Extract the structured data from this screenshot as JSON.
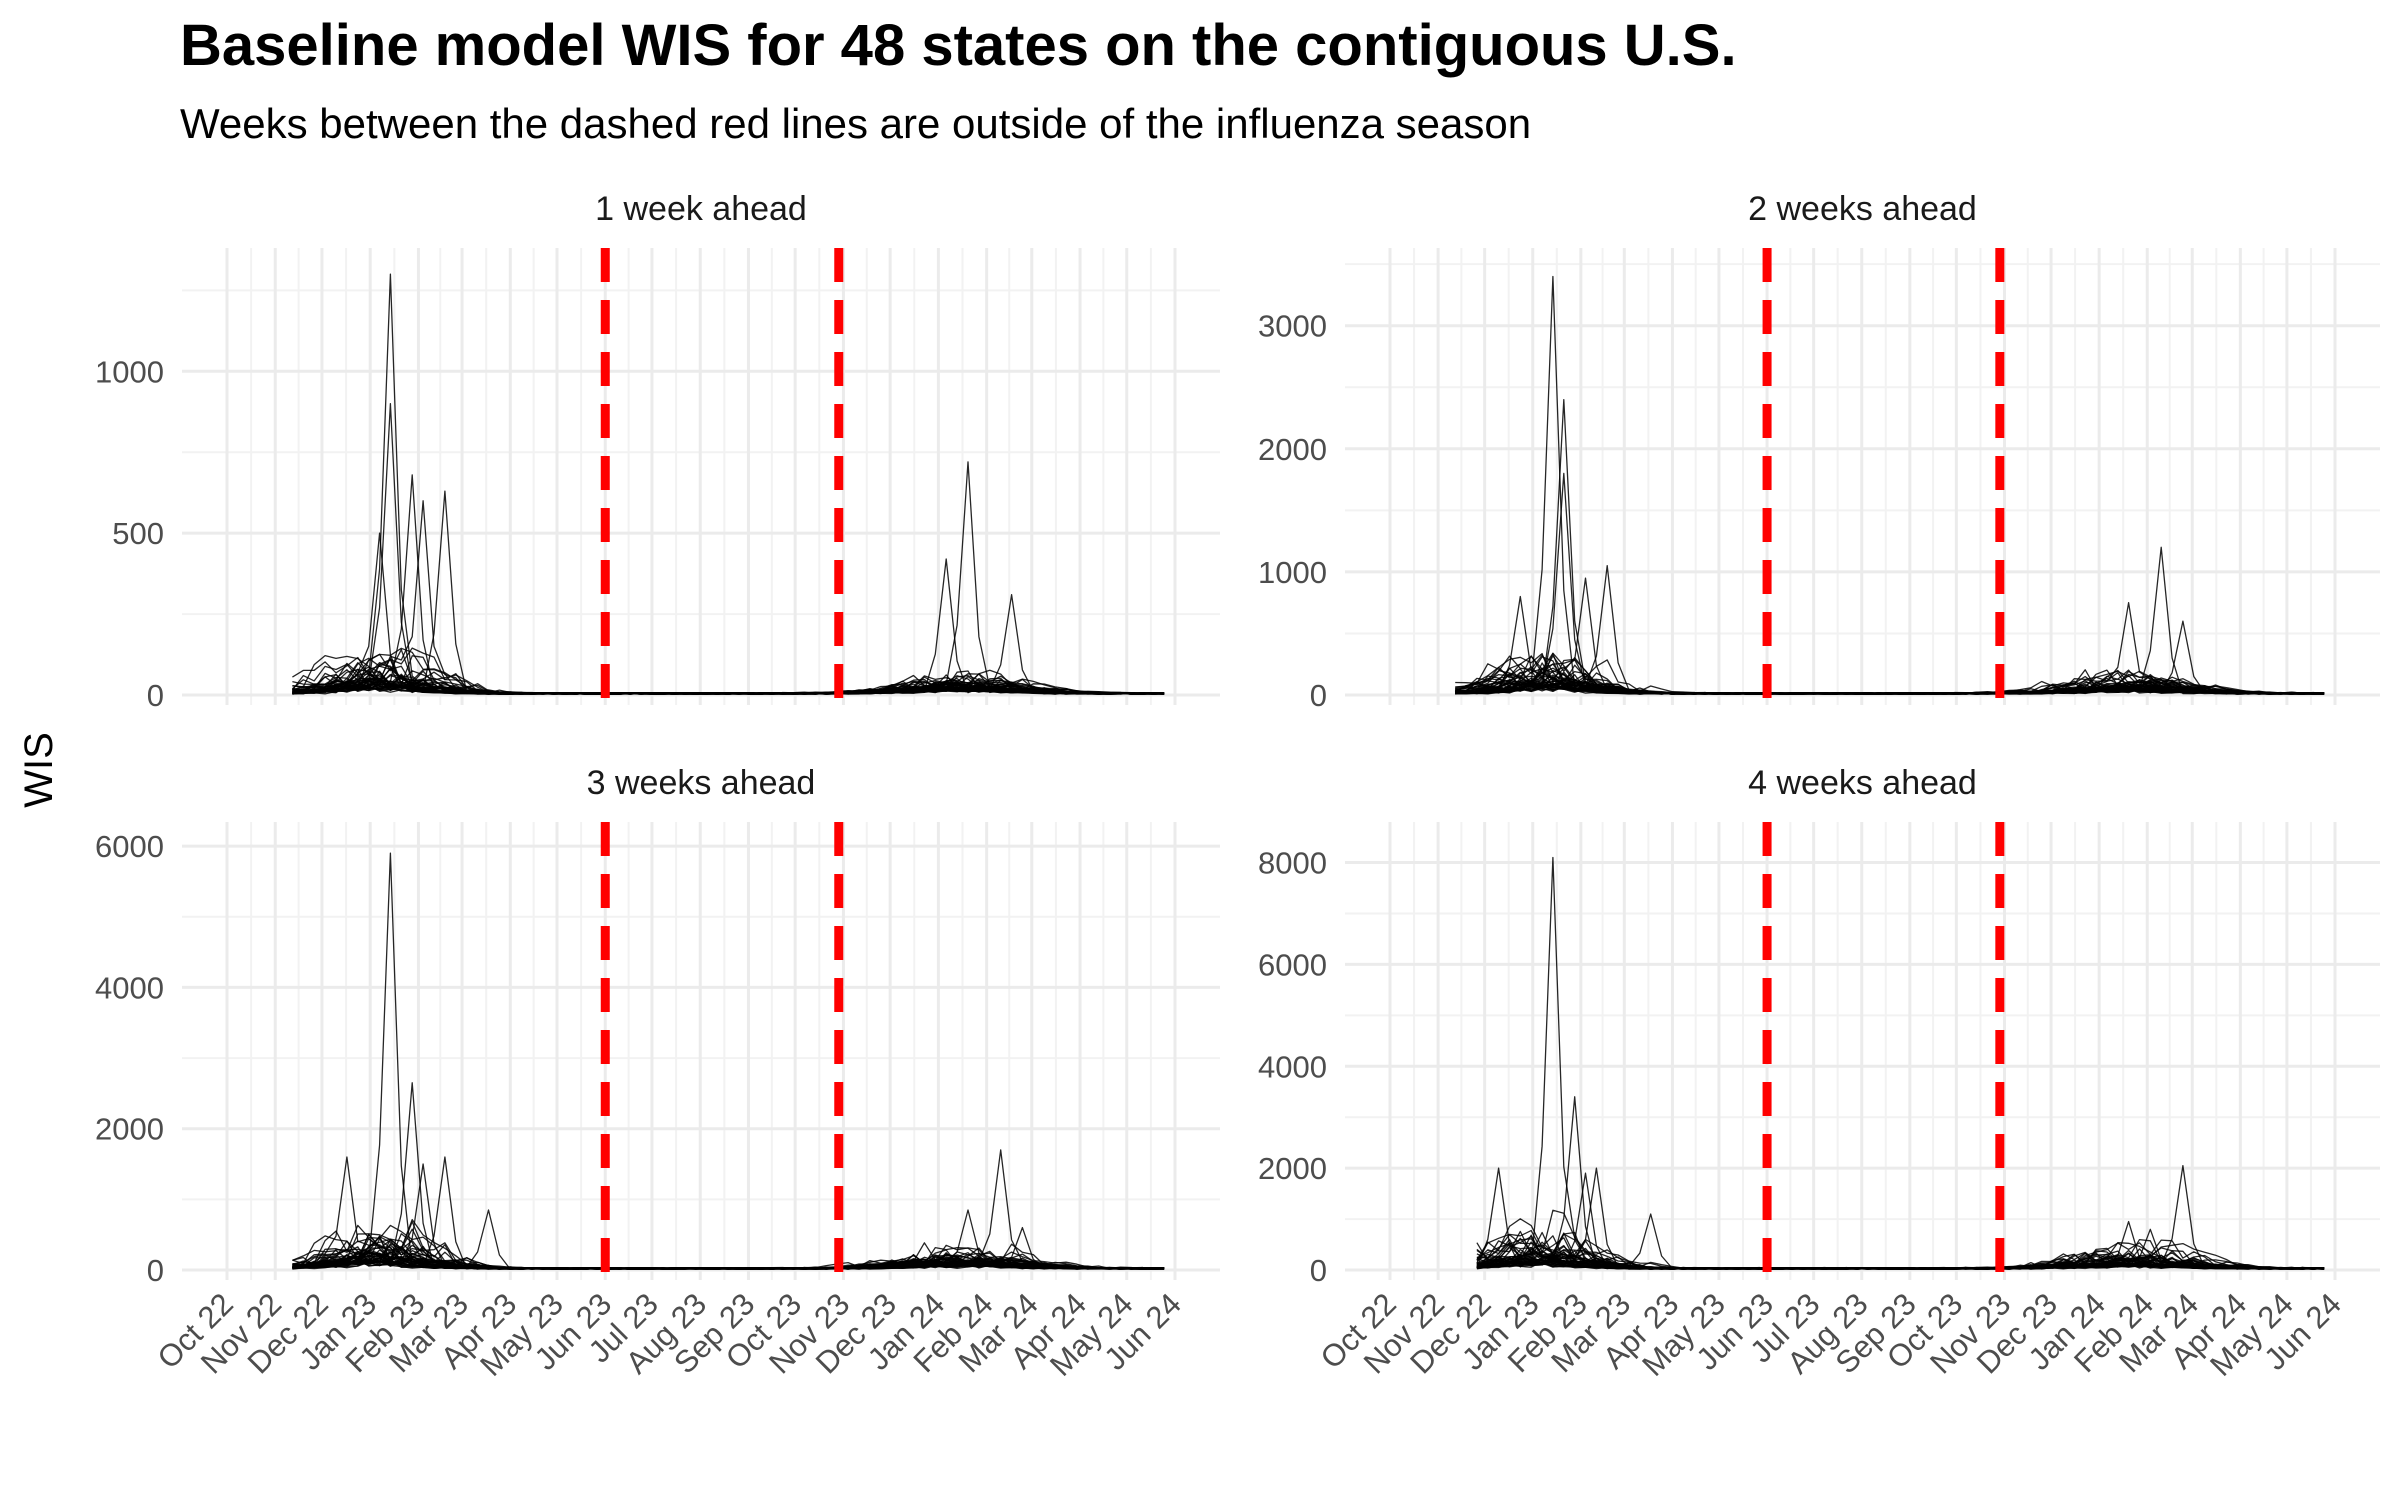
{
  "chart_data": {
    "type": "line",
    "title": "Baseline model WIS for 48 states on the contiguous U.S.",
    "subtitle": "Weeks between the dashed red lines are outside of the influenza season",
    "ylabel": "WIS",
    "xlabel": "",
    "x_tick_labels": [
      "Oct 22",
      "Nov 22",
      "Dec 22",
      "Jan 23",
      "Feb 23",
      "Mar 23",
      "Apr 23",
      "May 23",
      "Jun 23",
      "Jul 23",
      "Aug 23",
      "Sep 23",
      "Oct 23",
      "Nov 23",
      "Dec 23",
      "Jan 24",
      "Feb 24",
      "Mar 24",
      "Apr 24",
      "May 24",
      "Jun 24"
    ],
    "x_range": [
      "2022-10-01",
      "2024-06-01"
    ],
    "off_season_lines": [
      "2023-06-01",
      "2023-10-29"
    ],
    "line_color": "#000000",
    "marker_color": "#ff0000",
    "grid": true,
    "n_series": 48,
    "panels": [
      {
        "label": "1 week ahead",
        "ylim": [
          0,
          1350
        ],
        "y_ticks": [
          0,
          500,
          1000
        ],
        "y_tick_labels": [
          "0",
          "500",
          "1000"
        ],
        "data_start": "2022-11-12",
        "peaks": [
          {
            "date": "2023-01-14",
            "value": 1300
          },
          {
            "date": "2023-01-14",
            "value": 900
          },
          {
            "date": "2023-01-28",
            "value": 680
          },
          {
            "date": "2023-02-18",
            "value": 630
          },
          {
            "date": "2023-02-04",
            "value": 600
          },
          {
            "date": "2023-01-07",
            "value": 500
          },
          {
            "date": "2024-01-20",
            "value": 720
          },
          {
            "date": "2024-01-06",
            "value": 420
          },
          {
            "date": "2024-02-17",
            "value": 310
          }
        ]
      },
      {
        "label": "2 weeks ahead",
        "ylim": [
          0,
          3550
        ],
        "y_ticks": [
          0,
          1000,
          2000,
          3000
        ],
        "y_tick_labels": [
          "0",
          "1000",
          "2000",
          "3000"
        ],
        "data_start": "2022-11-12",
        "peaks": [
          {
            "date": "2023-01-14",
            "value": 3400
          },
          {
            "date": "2023-01-21",
            "value": 2400
          },
          {
            "date": "2023-01-21",
            "value": 1800
          },
          {
            "date": "2023-02-18",
            "value": 1050
          },
          {
            "date": "2023-02-04",
            "value": 950
          },
          {
            "date": "2022-12-24",
            "value": 800
          },
          {
            "date": "2024-02-10",
            "value": 1200
          },
          {
            "date": "2024-01-20",
            "value": 750
          },
          {
            "date": "2024-02-24",
            "value": 600
          }
        ]
      },
      {
        "label": "3 weeks ahead",
        "ylim": [
          0,
          6200
        ],
        "y_ticks": [
          0,
          2000,
          4000,
          6000
        ],
        "y_tick_labels": [
          "0",
          "2000",
          "4000",
          "6000"
        ],
        "data_start": "2022-11-12",
        "peaks": [
          {
            "date": "2023-01-14",
            "value": 5900
          },
          {
            "date": "2023-01-28",
            "value": 2650
          },
          {
            "date": "2022-12-17",
            "value": 1600
          },
          {
            "date": "2023-02-18",
            "value": 1600
          },
          {
            "date": "2023-02-04",
            "value": 1500
          },
          {
            "date": "2023-03-18",
            "value": 850
          },
          {
            "date": "2024-02-10",
            "value": 1700
          },
          {
            "date": "2024-01-20",
            "value": 850
          },
          {
            "date": "2024-02-24",
            "value": 600
          }
        ]
      },
      {
        "label": "4 weeks ahead",
        "ylim": [
          0,
          8600
        ],
        "y_ticks": [
          0,
          2000,
          4000,
          6000,
          8000
        ],
        "y_tick_labels": [
          "0",
          "2000",
          "4000",
          "6000",
          "8000"
        ],
        "data_start": "2022-11-26",
        "peaks": [
          {
            "date": "2023-01-14",
            "value": 8100
          },
          {
            "date": "2023-01-28",
            "value": 3400
          },
          {
            "date": "2022-12-10",
            "value": 2000
          },
          {
            "date": "2023-02-11",
            "value": 2000
          },
          {
            "date": "2023-02-04",
            "value": 1900
          },
          {
            "date": "2023-03-18",
            "value": 1100
          },
          {
            "date": "2024-02-24",
            "value": 2050
          },
          {
            "date": "2024-01-20",
            "value": 950
          },
          {
            "date": "2024-02-03",
            "value": 800
          }
        ]
      }
    ]
  }
}
